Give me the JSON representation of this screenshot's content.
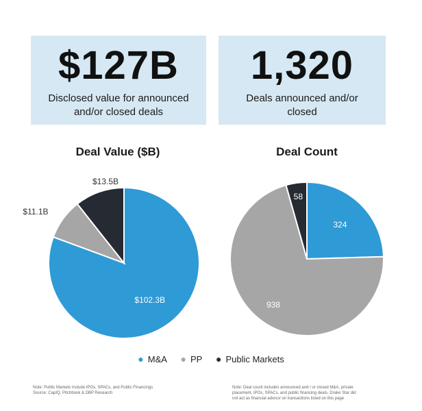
{
  "kpis": [
    {
      "value": "$127B",
      "caption_line1": "Disclosed value for announced",
      "caption_line2": "and/or closed deals"
    },
    {
      "value": "1,320",
      "caption_line1": "Deals announced and/or",
      "caption_line2": "closed"
    }
  ],
  "colors": {
    "ma": "#2e9ad6",
    "pp": "#a6a6a6",
    "public": "#262a33",
    "kpi_bg": "#d5e8f3"
  },
  "chart_data": [
    {
      "type": "pie",
      "title": "Deal Value ($B)",
      "categories": [
        "M&A",
        "PP",
        "Public Markets"
      ],
      "values": [
        102.3,
        11.1,
        13.5
      ],
      "labels": [
        "$102.3B",
        "$11.1B",
        "$13.5B"
      ]
    },
    {
      "type": "pie",
      "title": "Deal Count",
      "categories": [
        "M&A",
        "PP",
        "Public Markets"
      ],
      "values": [
        324,
        938,
        58
      ],
      "labels": [
        "324",
        "938",
        "58"
      ]
    }
  ],
  "legend": [
    {
      "name": "M&A",
      "color": "#2e9ad6"
    },
    {
      "name": "PP",
      "color": "#a6a6a6"
    },
    {
      "name": "Public Markets",
      "color": "#262a33"
    }
  ],
  "notes": {
    "left_line1": "Note: Public Markets include IPOs, SPACs, and Public Financings",
    "left_line2": "Source: CapIQ, Pitchbook & DBP Research",
    "right_line1": "Note: Deal count includes announced and / or closed M&A, private",
    "right_line2": "placement, IPOs, SPACs, and public financing deals. Drake Star did",
    "right_line3": "not act as financial advisor on transactions listed on this page"
  }
}
